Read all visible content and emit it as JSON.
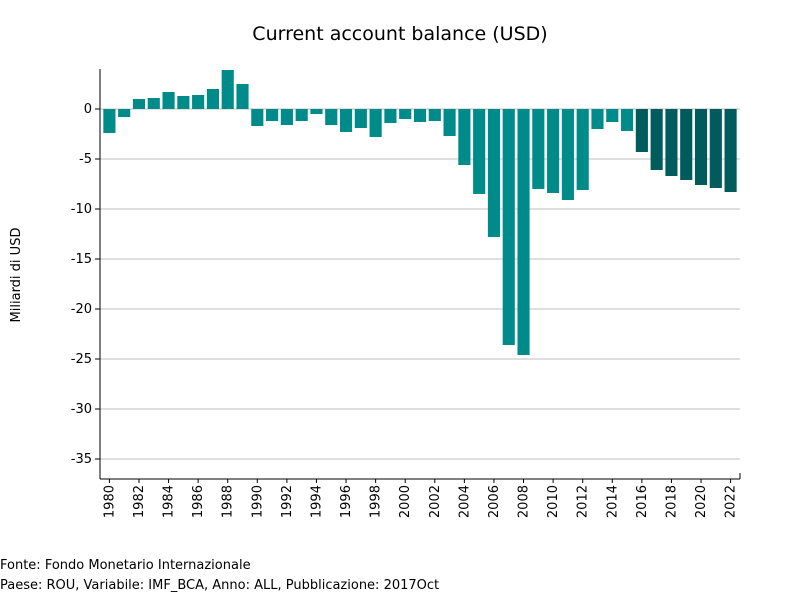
{
  "chart_data": {
    "type": "bar",
    "title": "Current account balance (USD)",
    "xlabel": "",
    "ylabel": "Miliardi di USD",
    "ylim": [
      -37,
      4
    ],
    "yticks": [
      0,
      -5,
      -10,
      -15,
      -20,
      -25,
      -30,
      -35
    ],
    "grid": true,
    "legend": "none",
    "x_tick_labels": [
      "1980",
      "1982",
      "1984",
      "1986",
      "1988",
      "1990",
      "1992",
      "1994",
      "1996",
      "1998",
      "2000",
      "2002",
      "2004",
      "2006",
      "2008",
      "2010",
      "2012",
      "2014",
      "2016",
      "2018",
      "2020",
      "2022"
    ],
    "categories": [
      "1980",
      "1981",
      "1982",
      "1983",
      "1984",
      "1985",
      "1986",
      "1987",
      "1988",
      "1989",
      "1990",
      "1991",
      "1992",
      "1993",
      "1994",
      "1995",
      "1996",
      "1997",
      "1998",
      "1999",
      "2000",
      "2001",
      "2002",
      "2003",
      "2004",
      "2005",
      "2006",
      "2007",
      "2008",
      "2009",
      "2010",
      "2011",
      "2012",
      "2013",
      "2014",
      "2015",
      "2016",
      "2017",
      "2018",
      "2019",
      "2020",
      "2021",
      "2022"
    ],
    "values": [
      -2.4,
      -0.8,
      1.0,
      1.1,
      1.7,
      1.3,
      1.4,
      2.0,
      3.9,
      2.5,
      -1.7,
      -1.2,
      -1.6,
      -1.2,
      -0.5,
      -1.6,
      -2.3,
      -1.9,
      -2.8,
      -1.4,
      -1.0,
      -1.3,
      -1.2,
      -2.7,
      -5.6,
      -8.5,
      -12.8,
      -23.6,
      -24.6,
      -8.0,
      -8.4,
      -9.1,
      -8.1,
      -2.0,
      -1.3,
      -2.2,
      -4.3,
      -6.1,
      -6.7,
      -7.1,
      -7.6,
      -7.9,
      -8.3
    ],
    "colors": {
      "actual": "#008b8b",
      "projection": "#005c5c"
    },
    "projection_from_index": 36,
    "axis_color": "#000000",
    "grid_color": "#bfbfbf"
  },
  "footer": {
    "source": "Fonte: Fondo Monetario Internazionale",
    "details": "Paese: ROU, Variabile: IMF_BCA, Anno: ALL, Pubblicazione: 2017Oct"
  }
}
